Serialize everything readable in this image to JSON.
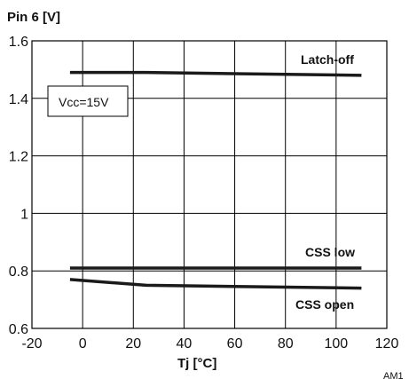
{
  "chart_data": {
    "type": "line",
    "title": "Pin 6 [V]",
    "xlabel": "Tj [°C]",
    "ylabel": "Pin 6 [V]",
    "xlim": [
      -20,
      120
    ],
    "ylim": [
      0.6,
      1.6
    ],
    "x_ticks": [
      -20,
      0,
      20,
      40,
      60,
      80,
      100,
      120
    ],
    "y_ticks": [
      0.6,
      0.8,
      1,
      1.2,
      1.4,
      1.6
    ],
    "x_tick_labels": [
      "-20",
      "0",
      "20",
      "40",
      "60",
      "80",
      "100",
      "120"
    ],
    "y_tick_labels": [
      "0.6",
      "0.8",
      "1",
      "1.2",
      "1.4",
      "1.6"
    ],
    "grid": true,
    "series": [
      {
        "name": "Latch-off",
        "x": [
          -5,
          25,
          110
        ],
        "y": [
          1.49,
          1.49,
          1.48
        ]
      },
      {
        "name": "CSS low",
        "x": [
          -5,
          110
        ],
        "y": [
          0.81,
          0.81
        ]
      },
      {
        "name": "CSS open",
        "x": [
          -5,
          25,
          110
        ],
        "y": [
          0.77,
          0.75,
          0.74
        ]
      }
    ],
    "annotation": "Vcc=15V",
    "corner_text": "AM1"
  }
}
